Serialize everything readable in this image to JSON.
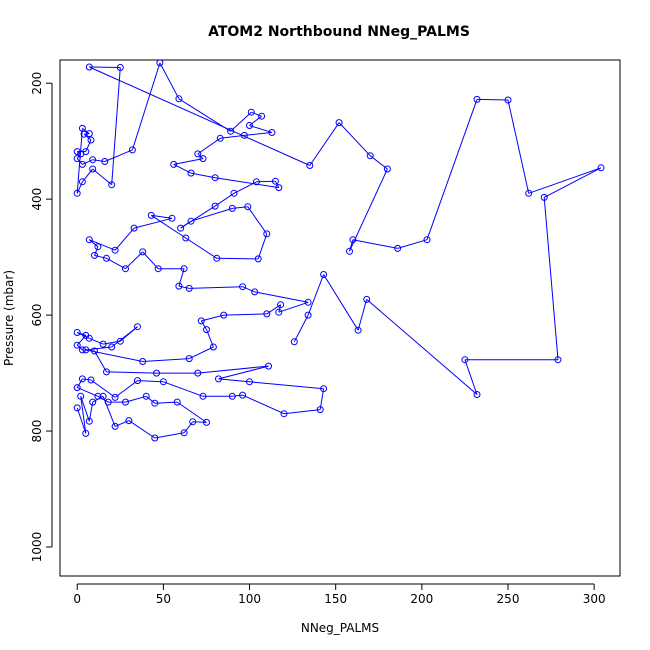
{
  "chart_data": {
    "type": "scatter",
    "title": "ATOM2 Northbound NNeg_PALMS",
    "xlabel": "NNeg_PALMS",
    "ylabel": "Pressure (mbar)",
    "xlim": [
      -10,
      315
    ],
    "ylim": [
      1050,
      160
    ],
    "y_reversed": true,
    "x_ticks": [
      0,
      50,
      100,
      150,
      200,
      250,
      300
    ],
    "y_ticks": [
      200,
      400,
      600,
      800,
      1000
    ],
    "series_color": "#0000ff",
    "marker": "open-circle",
    "connect_points": true,
    "points": [
      [
        0,
        760
      ],
      [
        5,
        804
      ],
      [
        2,
        740
      ],
      [
        7,
        783
      ],
      [
        9,
        750
      ],
      [
        15,
        740
      ],
      [
        22,
        792
      ],
      [
        30,
        782
      ],
      [
        45,
        812
      ],
      [
        62,
        803
      ],
      [
        67,
        784
      ],
      [
        75,
        785
      ],
      [
        58,
        750
      ],
      [
        45,
        752
      ],
      [
        40,
        740
      ],
      [
        28,
        750
      ],
      [
        18,
        750
      ],
      [
        12,
        740
      ],
      [
        0,
        725
      ],
      [
        3,
        710
      ],
      [
        8,
        712
      ],
      [
        22,
        742
      ],
      [
        35,
        713
      ],
      [
        50,
        715
      ],
      [
        73,
        740
      ],
      [
        90,
        740
      ],
      [
        96,
        738
      ],
      [
        120,
        770
      ],
      [
        141,
        763
      ],
      [
        143,
        727
      ],
      [
        100,
        715
      ],
      [
        82,
        710
      ],
      [
        111,
        688
      ],
      [
        70,
        700
      ],
      [
        46,
        700
      ],
      [
        17,
        698
      ],
      [
        10,
        662
      ],
      [
        3,
        660
      ],
      [
        0,
        652
      ],
      [
        5,
        635
      ],
      [
        0,
        630
      ],
      [
        7,
        640
      ],
      [
        15,
        650
      ],
      [
        25,
        645
      ],
      [
        35,
        620
      ],
      [
        20,
        655
      ],
      [
        5,
        660
      ],
      [
        38,
        680
      ],
      [
        65,
        675
      ],
      [
        79,
        655
      ],
      [
        75,
        625
      ],
      [
        72,
        610
      ],
      [
        85,
        600
      ],
      [
        110,
        598
      ],
      [
        118,
        582
      ],
      [
        117,
        595
      ],
      [
        134,
        578
      ],
      [
        103,
        560
      ],
      [
        96,
        551
      ],
      [
        65,
        554
      ],
      [
        59,
        550
      ],
      [
        62,
        520
      ],
      [
        47,
        520
      ],
      [
        38,
        491
      ],
      [
        28,
        520
      ],
      [
        17,
        502
      ],
      [
        10,
        497
      ],
      [
        12,
        482
      ],
      [
        7,
        470
      ],
      [
        22,
        488
      ],
      [
        33,
        450
      ],
      [
        55,
        433
      ],
      [
        43,
        428
      ],
      [
        63,
        467
      ],
      [
        81,
        502
      ],
      [
        105,
        503
      ],
      [
        110,
        460
      ],
      [
        99,
        413
      ],
      [
        90,
        416
      ],
      [
        66,
        438
      ],
      [
        60,
        450
      ],
      [
        80,
        412
      ],
      [
        91,
        390
      ],
      [
        104,
        370
      ],
      [
        115,
        369
      ],
      [
        117,
        380
      ],
      [
        80,
        363
      ],
      [
        66,
        355
      ],
      [
        56,
        340
      ],
      [
        73,
        330
      ],
      [
        70,
        322
      ],
      [
        83,
        295
      ],
      [
        97,
        290
      ],
      [
        113,
        285
      ],
      [
        100,
        273
      ],
      [
        107,
        257
      ],
      [
        101,
        250
      ],
      [
        89,
        283
      ],
      [
        59,
        227
      ],
      [
        48,
        165
      ],
      [
        32,
        315
      ],
      [
        16,
        335
      ],
      [
        9,
        332
      ],
      [
        3,
        340
      ],
      [
        0,
        330
      ],
      [
        2,
        322
      ],
      [
        0,
        318
      ],
      [
        5,
        318
      ],
      [
        8,
        298
      ],
      [
        4,
        288
      ],
      [
        7,
        287
      ],
      [
        3,
        278
      ],
      [
        0,
        390
      ],
      [
        3,
        370
      ],
      [
        9,
        348
      ],
      [
        20,
        375
      ],
      [
        25,
        173
      ],
      [
        7,
        172
      ],
      [
        135,
        342
      ],
      [
        152,
        268
      ],
      [
        170,
        325
      ],
      [
        180,
        348
      ],
      [
        158,
        490
      ],
      [
        160,
        470
      ],
      [
        186,
        485
      ],
      [
        203,
        470
      ],
      [
        232,
        228
      ],
      [
        250,
        229
      ],
      [
        262,
        390
      ],
      [
        304,
        346
      ],
      [
        271,
        397
      ],
      [
        279,
        677
      ],
      [
        225,
        677
      ],
      [
        232,
        737
      ],
      [
        168,
        573
      ],
      [
        163,
        626
      ],
      [
        143,
        530
      ],
      [
        134,
        600
      ],
      [
        126,
        646
      ]
    ]
  }
}
